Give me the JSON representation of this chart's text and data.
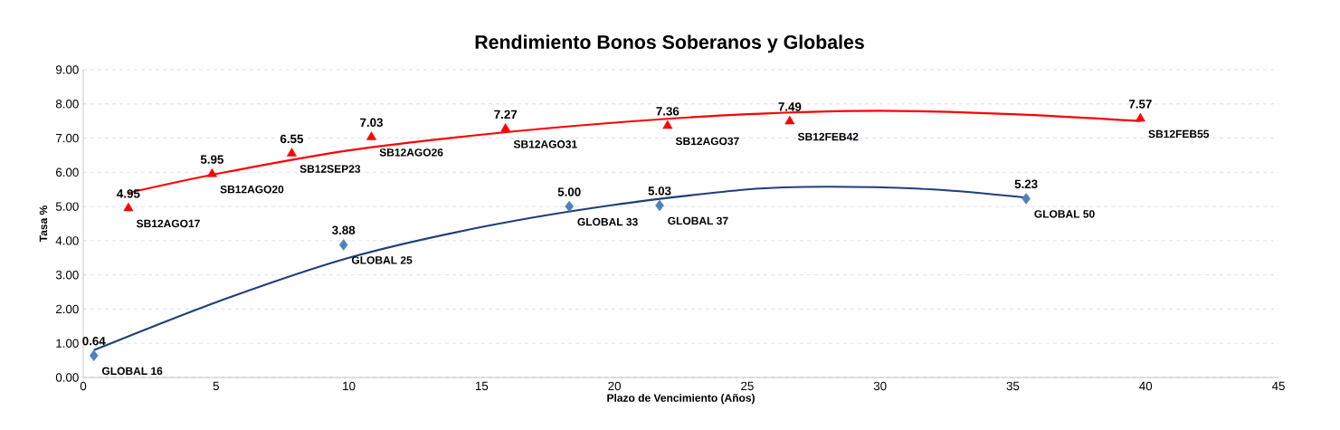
{
  "chart_data": {
    "type": "scatter",
    "title": "Rendimiento  Bonos Soberanos  y Globales",
    "xlabel": "Plazo de Vencimiento  (Años)",
    "ylabel": "Tasa %",
    "xlim": [
      0,
      45
    ],
    "xticks": [
      0,
      5,
      10,
      15,
      20,
      25,
      30,
      35,
      40,
      45
    ],
    "ylim": [
      0,
      9
    ],
    "yticks": [
      {
        "value": 0,
        "label": "0.00"
      },
      {
        "value": 1,
        "label": "1.00"
      },
      {
        "value": 2,
        "label": "2.00"
      },
      {
        "value": 3,
        "label": "3.00"
      },
      {
        "value": 4,
        "label": "4.00"
      },
      {
        "value": 5,
        "label": "5.00"
      },
      {
        "value": 6,
        "label": "6.00"
      },
      {
        "value": 7,
        "label": "7.00"
      },
      {
        "value": 8,
        "label": "8.00"
      },
      {
        "value": 9,
        "label": "9.00"
      }
    ],
    "grid": "y",
    "series": [
      {
        "marker": "triangle",
        "color": "#ff0000",
        "x": [
          1.7,
          4.85,
          7.85,
          10.85,
          15.9,
          22,
          26.6,
          39.8
        ],
        "values": [
          4.95,
          5.95,
          6.55,
          7.03,
          7.27,
          7.36,
          7.49,
          7.57
        ],
        "value_labels": [
          "4.95",
          "5.95",
          "6.55",
          "7.03",
          "7.27",
          "7.36",
          "7.49",
          "7.57"
        ]
      },
      {
        "marker": "diamond",
        "color": "#4f81bd",
        "x": [
          0.4,
          9.8,
          18.3,
          21.7,
          35.5
        ],
        "values": [
          0.64,
          3.88,
          5.0,
          5.03,
          5.23
        ],
        "value_labels": [
          "0.64",
          "3.88",
          "5.00",
          "5.03",
          "5.23"
        ]
      },
      {
        "type": "line",
        "marker": "none",
        "line_style": "solid",
        "color": "#ff0000",
        "x": [
          1.7,
          5,
          10,
          15,
          20,
          25,
          30,
          35,
          39.8
        ],
        "values": [
          5.4,
          5.95,
          6.64,
          7.1,
          7.45,
          7.7,
          7.8,
          7.7,
          7.5
        ]
      },
      {
        "type": "line",
        "marker": "none",
        "line_style": "solid",
        "color": "#1f3f7a",
        "x": [
          0.4,
          5,
          10,
          15,
          20,
          25,
          28,
          32,
          35.5
        ],
        "values": [
          0.8,
          2.2,
          3.5,
          4.4,
          5.05,
          5.5,
          5.58,
          5.5,
          5.26
        ]
      }
    ],
    "annotations": [
      {
        "text": "SB12AGO17",
        "x": 1.7,
        "y": 4.95
      },
      {
        "text": "SB12AGO20",
        "x": 4.85,
        "y": 5.95
      },
      {
        "text": "SB12SEP23",
        "x": 7.85,
        "y": 6.55
      },
      {
        "text": "SB12AGO26",
        "x": 10.85,
        "y": 7.03
      },
      {
        "text": "SB12AGO31",
        "x": 15.9,
        "y": 7.27
      },
      {
        "text": "SB12AGO37",
        "x": 22,
        "y": 7.36
      },
      {
        "text": "SB12FEB42",
        "x": 26.6,
        "y": 7.49
      },
      {
        "text": "SB12FEB55",
        "x": 39.8,
        "y": 7.57
      },
      {
        "text": "GLOBAL 16",
        "x": 0.4,
        "y": 0.64
      },
      {
        "text": "GLOBAL 25",
        "x": 9.8,
        "y": 3.88
      },
      {
        "text": "GLOBAL 33",
        "x": 18.3,
        "y": 5.0
      },
      {
        "text": "GLOBAL 37",
        "x": 21.7,
        "y": 5.03
      },
      {
        "text": "GLOBAL 50",
        "x": 35.5,
        "y": 5.23
      }
    ]
  }
}
